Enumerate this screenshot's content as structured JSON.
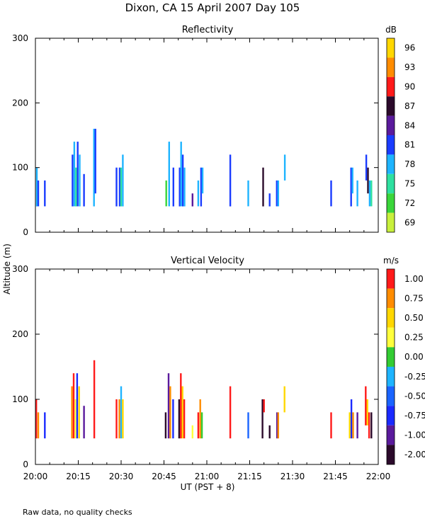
{
  "title": "Dixon, CA 15 April 2007  Day 105",
  "ylabel": "Altitude (m)",
  "xlabel": "UT  (PST + 8)",
  "footnote": "Raw data, no quality checks",
  "chart_data": [
    {
      "type": "heatmap",
      "title": "Reflectivity",
      "unit": "dB",
      "xlim": [
        1200,
        1320
      ],
      "ylim": [
        0,
        300
      ],
      "xticks": [
        1200,
        1215,
        1230,
        1245,
        1260,
        1275,
        1290,
        1305,
        1320
      ],
      "xtick_labels": [
        "20:00",
        "20:15",
        "20:30",
        "20:45",
        "21:00",
        "21:15",
        "21:30",
        "21:45",
        "22:00"
      ],
      "yticks": [
        0,
        100,
        200,
        300
      ],
      "colorbar": {
        "labels": [
          "96",
          "93",
          "90",
          "87",
          "84",
          "81",
          "78",
          "75",
          "72",
          "69"
        ],
        "colors": [
          "#ffd700",
          "#ff8c00",
          "#ff1a1a",
          "#2b0a2b",
          "#5a1a9c",
          "#1a3cff",
          "#1eb4ff",
          "#2ee0a0",
          "#3ad63a",
          "#c8f03c"
        ]
      },
      "columns": [
        {
          "t": 1200.5,
          "b": 40,
          "top": 100,
          "c": "#1eb4ff"
        },
        {
          "t": 1201.0,
          "b": 40,
          "top": 80,
          "c": "#1a3cff"
        },
        {
          "t": 1203.3,
          "b": 40,
          "top": 80,
          "c": "#1a3cff"
        },
        {
          "t": 1213.0,
          "b": 40,
          "top": 120,
          "c": "#1a3cff"
        },
        {
          "t": 1213.6,
          "b": 40,
          "top": 140,
          "c": "#1eb4ff"
        },
        {
          "t": 1214.2,
          "b": 40,
          "top": 100,
          "c": "#2ee0a0"
        },
        {
          "t": 1214.8,
          "b": 40,
          "top": 140,
          "c": "#1a3cff"
        },
        {
          "t": 1215.5,
          "b": 40,
          "top": 120,
          "c": "#1eb4ff"
        },
        {
          "t": 1217.0,
          "b": 40,
          "top": 90,
          "c": "#1a3cff"
        },
        {
          "t": 1220.5,
          "b": 40,
          "top": 160,
          "c": "#1eb4ff"
        },
        {
          "t": 1221.0,
          "b": 60,
          "top": 160,
          "c": "#1a3cff"
        },
        {
          "t": 1228.4,
          "b": 40,
          "top": 100,
          "c": "#1a3cff"
        },
        {
          "t": 1229.5,
          "b": 40,
          "top": 100,
          "c": "#1a3cff"
        },
        {
          "t": 1230.0,
          "b": 40,
          "top": 100,
          "c": "#2ee0a0"
        },
        {
          "t": 1230.6,
          "b": 40,
          "top": 120,
          "c": "#1eb4ff"
        },
        {
          "t": 1245.8,
          "b": 40,
          "top": 80,
          "c": "#3ad63a"
        },
        {
          "t": 1246.8,
          "b": 40,
          "top": 140,
          "c": "#1eb4ff"
        },
        {
          "t": 1248.3,
          "b": 40,
          "top": 100,
          "c": "#1a3cff"
        },
        {
          "t": 1250.5,
          "b": 40,
          "top": 100,
          "c": "#1a3cff"
        },
        {
          "t": 1251.0,
          "b": 40,
          "top": 140,
          "c": "#1eb4ff"
        },
        {
          "t": 1251.6,
          "b": 40,
          "top": 120,
          "c": "#1a3cff"
        },
        {
          "t": 1252.2,
          "b": 40,
          "top": 100,
          "c": "#1eb4ff"
        },
        {
          "t": 1255.0,
          "b": 40,
          "top": 60,
          "c": "#5a1a9c"
        },
        {
          "t": 1257.0,
          "b": 40,
          "top": 80,
          "c": "#1eb4ff"
        },
        {
          "t": 1258.0,
          "b": 40,
          "top": 100,
          "c": "#1a3cff"
        },
        {
          "t": 1258.5,
          "b": 60,
          "top": 100,
          "c": "#1eb4ff"
        },
        {
          "t": 1268.2,
          "b": 40,
          "top": 120,
          "c": "#1a3cff"
        },
        {
          "t": 1274.5,
          "b": 40,
          "top": 80,
          "c": "#1eb4ff"
        },
        {
          "t": 1279.7,
          "b": 40,
          "top": 100,
          "c": "#2b0a2b"
        },
        {
          "t": 1282.0,
          "b": 40,
          "top": 60,
          "c": "#1a3cff"
        },
        {
          "t": 1284.5,
          "b": 40,
          "top": 80,
          "c": "#1a3cff"
        },
        {
          "t": 1285.0,
          "b": 40,
          "top": 80,
          "c": "#1eb4ff"
        },
        {
          "t": 1287.3,
          "b": 80,
          "top": 120,
          "c": "#1eb4ff"
        },
        {
          "t": 1303.5,
          "b": 40,
          "top": 80,
          "c": "#1a3cff"
        },
        {
          "t": 1310.5,
          "b": 40,
          "top": 100,
          "c": "#1a3cff"
        },
        {
          "t": 1311.0,
          "b": 60,
          "top": 100,
          "c": "#1eb4ff"
        },
        {
          "t": 1312.7,
          "b": 40,
          "top": 80,
          "c": "#1eb4ff"
        },
        {
          "t": 1315.8,
          "b": 80,
          "top": 120,
          "c": "#1a3cff"
        },
        {
          "t": 1316.4,
          "b": 60,
          "top": 100,
          "c": "#2b0a2b"
        },
        {
          "t": 1317.0,
          "b": 40,
          "top": 80,
          "c": "#1eb4ff"
        },
        {
          "t": 1317.6,
          "b": 40,
          "top": 80,
          "c": "#2ee0a0"
        }
      ]
    },
    {
      "type": "heatmap",
      "title": "Vertical Velocity",
      "unit": "m/s",
      "xlim": [
        1200,
        1320
      ],
      "ylim": [
        0,
        300
      ],
      "xticks": [
        1200,
        1215,
        1230,
        1245,
        1260,
        1275,
        1290,
        1305,
        1320
      ],
      "xtick_labels": [
        "20:00",
        "20:15",
        "20:30",
        "20:45",
        "21:00",
        "21:15",
        "21:30",
        "21:45",
        "22:00"
      ],
      "yticks": [
        0,
        100,
        200,
        300
      ],
      "colorbar": {
        "labels": [
          "1.00",
          "0.75",
          "0.50",
          "0.25",
          "0.00",
          "-0.25",
          "-0.50",
          "-0.75",
          "-1.00",
          "-2.00"
        ],
        "colors": [
          "#ff1a1a",
          "#ff8c00",
          "#ffd700",
          "#ffff3c",
          "#33cc33",
          "#1eb4ff",
          "#1a64ff",
          "#1a2aff",
          "#5a1a9c",
          "#2b0a2b"
        ]
      },
      "columns": [
        {
          "t": 1200.3,
          "b": 40,
          "top": 100,
          "c": "#ff1a1a"
        },
        {
          "t": 1201.0,
          "b": 40,
          "top": 80,
          "c": "#ff8c00"
        },
        {
          "t": 1203.3,
          "b": 40,
          "top": 80,
          "c": "#1a2aff"
        },
        {
          "t": 1212.8,
          "b": 40,
          "top": 120,
          "c": "#ff8c00"
        },
        {
          "t": 1213.4,
          "b": 40,
          "top": 140,
          "c": "#ff1a1a"
        },
        {
          "t": 1214.0,
          "b": 40,
          "top": 100,
          "c": "#ffff3c"
        },
        {
          "t": 1214.6,
          "b": 40,
          "top": 140,
          "c": "#1a2aff"
        },
        {
          "t": 1215.3,
          "b": 40,
          "top": 120,
          "c": "#ffd700"
        },
        {
          "t": 1217.0,
          "b": 40,
          "top": 90,
          "c": "#5a1a9c"
        },
        {
          "t": 1220.6,
          "b": 40,
          "top": 160,
          "c": "#ff1a1a"
        },
        {
          "t": 1228.4,
          "b": 40,
          "top": 100,
          "c": "#ff1a1a"
        },
        {
          "t": 1229.4,
          "b": 40,
          "top": 100,
          "c": "#ff8c00"
        },
        {
          "t": 1230.0,
          "b": 40,
          "top": 120,
          "c": "#1eb4ff"
        },
        {
          "t": 1230.6,
          "b": 40,
          "top": 100,
          "c": "#ffd700"
        },
        {
          "t": 1245.6,
          "b": 40,
          "top": 80,
          "c": "#2b0a2b"
        },
        {
          "t": 1246.6,
          "b": 40,
          "top": 140,
          "c": "#5a1a9c"
        },
        {
          "t": 1247.2,
          "b": 40,
          "top": 120,
          "c": "#ff8c00"
        },
        {
          "t": 1248.2,
          "b": 40,
          "top": 100,
          "c": "#1a2aff"
        },
        {
          "t": 1250.3,
          "b": 40,
          "top": 100,
          "c": "#2b0a2b"
        },
        {
          "t": 1250.9,
          "b": 40,
          "top": 140,
          "c": "#ff1a1a"
        },
        {
          "t": 1251.5,
          "b": 40,
          "top": 120,
          "c": "#ffd700"
        },
        {
          "t": 1252.1,
          "b": 40,
          "top": 100,
          "c": "#ff1a1a"
        },
        {
          "t": 1255.0,
          "b": 40,
          "top": 60,
          "c": "#ffff3c"
        },
        {
          "t": 1257.0,
          "b": 40,
          "top": 80,
          "c": "#ff1a1a"
        },
        {
          "t": 1257.7,
          "b": 40,
          "top": 100,
          "c": "#ff8c00"
        },
        {
          "t": 1258.3,
          "b": 40,
          "top": 80,
          "c": "#33cc33"
        },
        {
          "t": 1268.2,
          "b": 40,
          "top": 120,
          "c": "#ff1a1a"
        },
        {
          "t": 1274.5,
          "b": 40,
          "top": 80,
          "c": "#1a64ff"
        },
        {
          "t": 1279.5,
          "b": 40,
          "top": 100,
          "c": "#2b0a2b"
        },
        {
          "t": 1280.0,
          "b": 80,
          "top": 100,
          "c": "#ff1a1a"
        },
        {
          "t": 1282.0,
          "b": 40,
          "top": 60,
          "c": "#2b0a2b"
        },
        {
          "t": 1284.6,
          "b": 40,
          "top": 80,
          "c": "#5a1a9c"
        },
        {
          "t": 1285.0,
          "b": 40,
          "top": 80,
          "c": "#ff8c00"
        },
        {
          "t": 1287.2,
          "b": 80,
          "top": 120,
          "c": "#ffd700"
        },
        {
          "t": 1303.5,
          "b": 40,
          "top": 80,
          "c": "#ff1a1a"
        },
        {
          "t": 1310.0,
          "b": 40,
          "top": 80,
          "c": "#ffd700"
        },
        {
          "t": 1310.6,
          "b": 40,
          "top": 100,
          "c": "#1a2aff"
        },
        {
          "t": 1311.2,
          "b": 40,
          "top": 80,
          "c": "#ff8c00"
        },
        {
          "t": 1312.7,
          "b": 40,
          "top": 80,
          "c": "#5a1a9c"
        },
        {
          "t": 1315.6,
          "b": 60,
          "top": 120,
          "c": "#ff1a1a"
        },
        {
          "t": 1316.2,
          "b": 60,
          "top": 100,
          "c": "#ffd700"
        },
        {
          "t": 1316.8,
          "b": 40,
          "top": 80,
          "c": "#ff1a1a"
        },
        {
          "t": 1317.6,
          "b": 40,
          "top": 80,
          "c": "#2b0a2b"
        }
      ]
    }
  ]
}
